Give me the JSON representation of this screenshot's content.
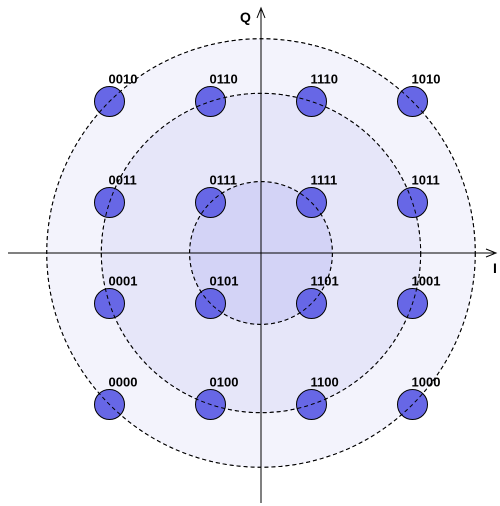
{
  "axes": {
    "x_label": "I",
    "y_label": "Q"
  },
  "colors": {
    "outer_ring": "#f3f3fc",
    "middle_ring": "#e6e6f9",
    "inner_ring": "#d3d3f6",
    "point_fill": "#6767e6",
    "point_stroke": "#000000",
    "dash": "#000000"
  },
  "constellation": {
    "levels": [
      -3,
      -1,
      1,
      3
    ],
    "rings": [
      {
        "name": "inner",
        "radius_units": 1.414
      },
      {
        "name": "middle",
        "radius_units": 3.162
      },
      {
        "name": "outer",
        "radius_units": 4.243
      }
    ],
    "points": [
      {
        "i": -3,
        "q": 3,
        "bits": "0010"
      },
      {
        "i": -1,
        "q": 3,
        "bits": "0110"
      },
      {
        "i": 1,
        "q": 3,
        "bits": "1110"
      },
      {
        "i": 3,
        "q": 3,
        "bits": "1010"
      },
      {
        "i": -3,
        "q": 1,
        "bits": "0011"
      },
      {
        "i": -1,
        "q": 1,
        "bits": "0111"
      },
      {
        "i": 1,
        "q": 1,
        "bits": "1111"
      },
      {
        "i": 3,
        "q": 1,
        "bits": "1011"
      },
      {
        "i": -3,
        "q": -1,
        "bits": "0001"
      },
      {
        "i": -1,
        "q": -1,
        "bits": "0101"
      },
      {
        "i": 1,
        "q": -1,
        "bits": "1101"
      },
      {
        "i": 3,
        "q": -1,
        "bits": "1001"
      },
      {
        "i": -3,
        "q": -3,
        "bits": "0000"
      },
      {
        "i": -1,
        "q": -3,
        "bits": "0100"
      },
      {
        "i": 1,
        "q": -3,
        "bits": "1100"
      },
      {
        "i": 3,
        "q": -3,
        "bits": "1000"
      }
    ]
  }
}
